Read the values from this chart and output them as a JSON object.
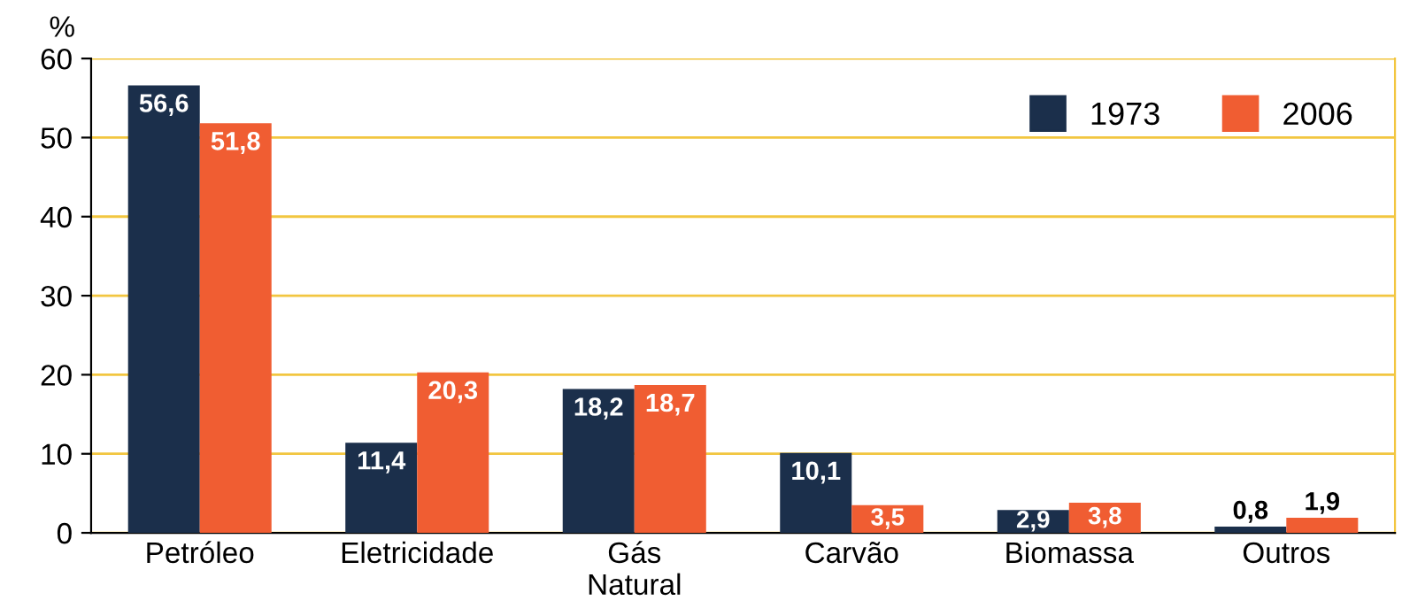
{
  "chart_data": {
    "type": "bar",
    "ylabel": "%",
    "categories": [
      "Petróleo",
      "Eletricidade",
      "Gás\nNatural",
      "Carvão",
      "Biomassa",
      "Outros"
    ],
    "series": [
      {
        "name": "1973",
        "color": "#1b2f4b",
        "values": [
          56.6,
          11.4,
          18.2,
          10.1,
          2.9,
          0.8
        ],
        "value_labels": [
          "56,6",
          "11,4",
          "18,2",
          "10,1",
          "2,9",
          "0,8"
        ]
      },
      {
        "name": "2006",
        "color": "#f05d32",
        "values": [
          51.8,
          20.3,
          18.7,
          3.5,
          3.8,
          1.9
        ],
        "value_labels": [
          "51,8",
          "20,3",
          "18,7",
          "3,5",
          "3,8",
          "1,9"
        ]
      }
    ],
    "ylim": [
      0,
      60
    ],
    "yticks": [
      0,
      10,
      20,
      30,
      40,
      50,
      60
    ],
    "grid": "y",
    "legend": "top right"
  }
}
